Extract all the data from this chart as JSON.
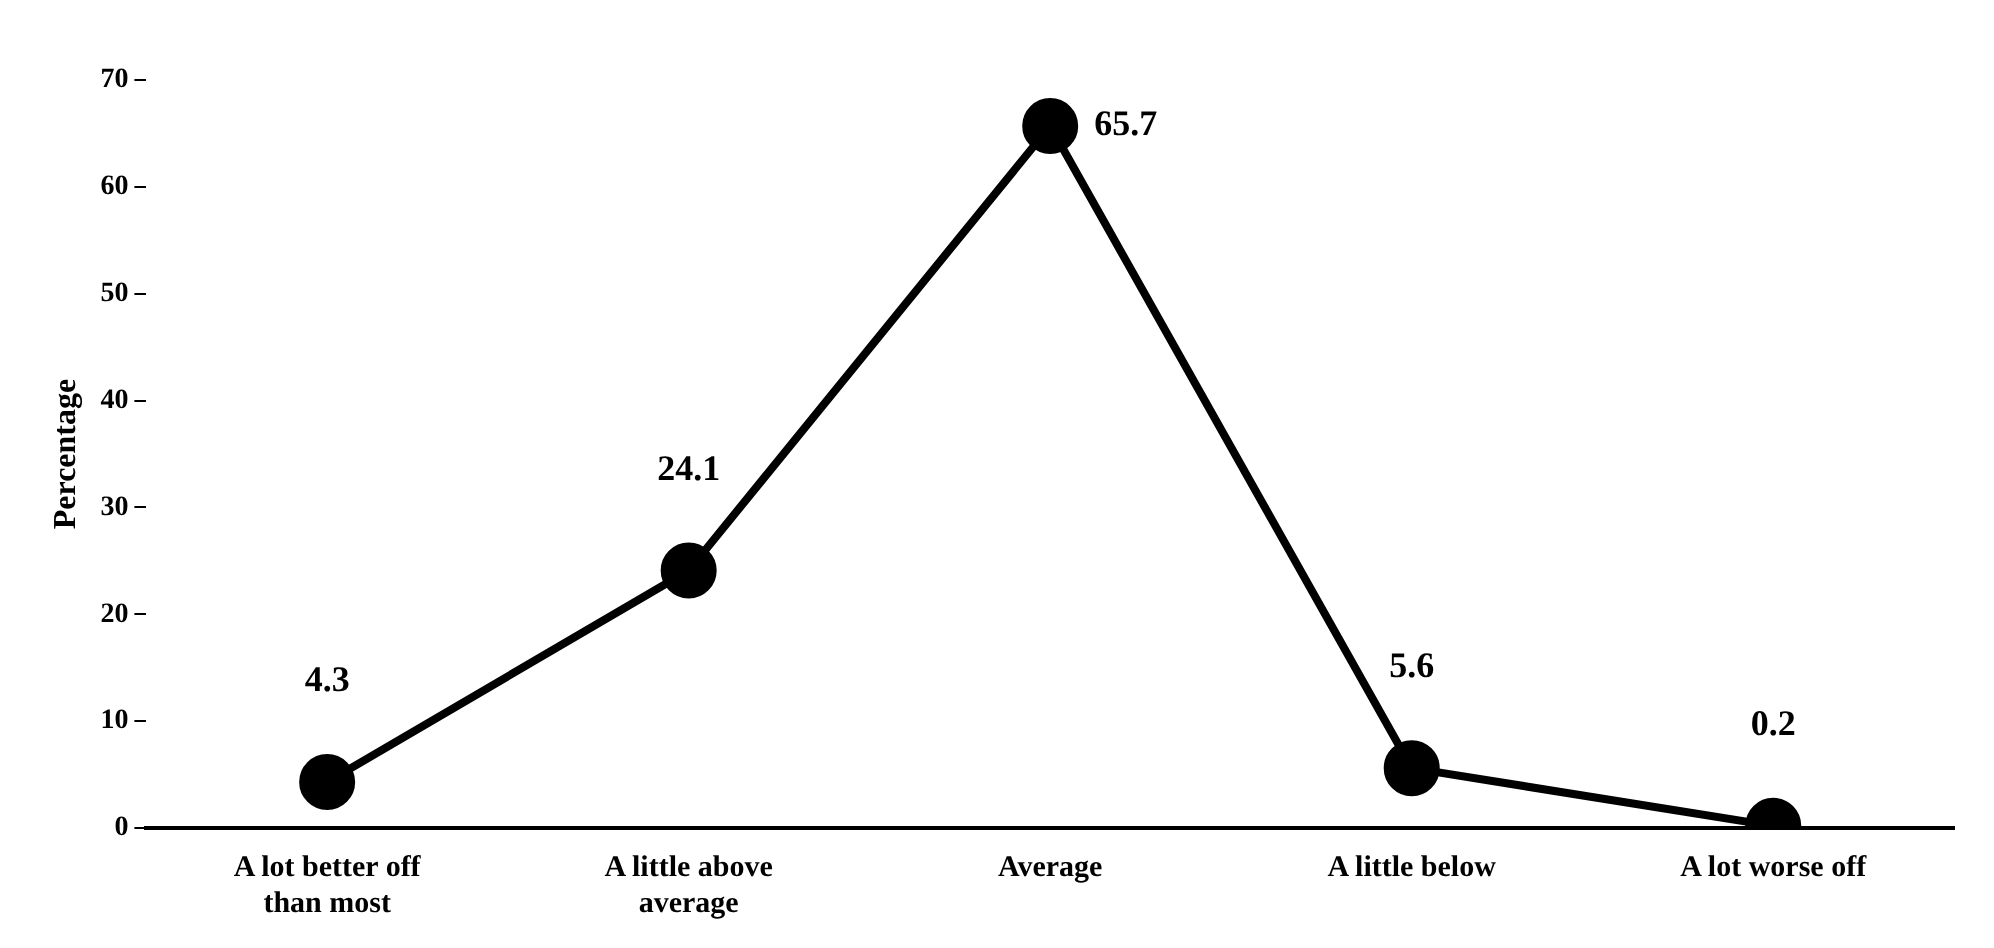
{
  "chart_data": {
    "type": "line",
    "ylabel": "Percentage",
    "categories": [
      "A lot better off than most",
      "A little above average",
      "Average",
      "A little below",
      "A lot worse off"
    ],
    "values": [
      4.3,
      24.1,
      65.7,
      5.6,
      0.2
    ],
    "color": "#000000",
    "ylim": [
      0,
      70
    ],
    "yticks": [
      0,
      10,
      20,
      30,
      40,
      50,
      60,
      70
    ],
    "grid": false,
    "legend": false,
    "marker": "circle",
    "line_style": "solid",
    "data_labels": true
  }
}
